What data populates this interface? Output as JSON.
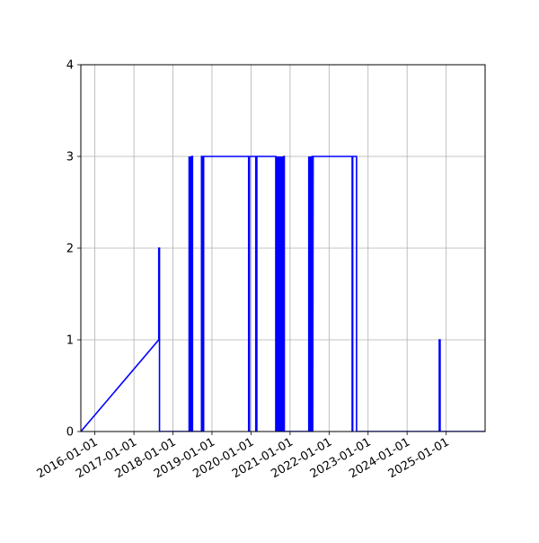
{
  "chart_data": {
    "type": "line",
    "title": "",
    "xlabel": "",
    "ylabel": "",
    "x_tick_labels": [
      "2016-01-01",
      "2017-01-01",
      "2018-01-01",
      "2019-01-01",
      "2020-01-01",
      "2021-01-01",
      "2022-01-01",
      "2023-01-01",
      "2024-01-01",
      "2025-01-01"
    ],
    "y_tick_labels": [
      "0",
      "1",
      "2",
      "3",
      "4"
    ],
    "xlim": [
      "2015-08-23",
      "2025-12-31"
    ],
    "ylim": [
      0,
      4
    ],
    "grid": true,
    "legend": false,
    "series": [
      {
        "color": "#0000ff",
        "points": [
          [
            "2015-08-23",
            0
          ],
          [
            "2017-08-21",
            1
          ],
          [
            "2017-08-21",
            2
          ],
          [
            "2017-08-28",
            2
          ],
          [
            "2017-08-28",
            0
          ],
          [
            "2018-06-01",
            0
          ],
          [
            "2018-06-01",
            3
          ],
          [
            "2018-06-05",
            0
          ],
          [
            "2018-06-10",
            3
          ],
          [
            "2018-06-14",
            0
          ],
          [
            "2018-06-18",
            3
          ],
          [
            "2018-06-22",
            0
          ],
          [
            "2018-06-26",
            3
          ],
          [
            "2018-07-03",
            3
          ],
          [
            "2018-07-03",
            0
          ],
          [
            "2018-09-25",
            0
          ],
          [
            "2018-09-25",
            3
          ],
          [
            "2018-10-05",
            3
          ],
          [
            "2018-10-05",
            0
          ],
          [
            "2018-10-15",
            0
          ],
          [
            "2018-10-15",
            3
          ],
          [
            "2019-12-10",
            3
          ],
          [
            "2019-12-10",
            0
          ],
          [
            "2019-12-18",
            0
          ],
          [
            "2019-12-18",
            3
          ],
          [
            "2020-02-15",
            3
          ],
          [
            "2020-02-15",
            0
          ],
          [
            "2020-02-25",
            0
          ],
          [
            "2020-02-25",
            3
          ],
          [
            "2020-08-20",
            3
          ],
          [
            "2020-08-20",
            0
          ],
          [
            "2020-08-24",
            3
          ],
          [
            "2020-08-28",
            0
          ],
          [
            "2020-09-01",
            3
          ],
          [
            "2020-09-05",
            0
          ],
          [
            "2020-09-09",
            3
          ],
          [
            "2020-09-13",
            0
          ],
          [
            "2020-09-17",
            3
          ],
          [
            "2020-09-21",
            0
          ],
          [
            "2020-09-25",
            3
          ],
          [
            "2020-09-29",
            0
          ],
          [
            "2020-10-03",
            3
          ],
          [
            "2020-10-07",
            0
          ],
          [
            "2020-10-11",
            3
          ],
          [
            "2020-10-15",
            0
          ],
          [
            "2020-10-19",
            3
          ],
          [
            "2020-10-23",
            0
          ],
          [
            "2020-10-27",
            3
          ],
          [
            "2020-10-31",
            0
          ],
          [
            "2020-11-04",
            3
          ],
          [
            "2020-11-08",
            3
          ],
          [
            "2020-11-08",
            0
          ],
          [
            "2021-06-25",
            0
          ],
          [
            "2021-06-25",
            3
          ],
          [
            "2021-06-30",
            0
          ],
          [
            "2021-07-05",
            3
          ],
          [
            "2021-07-10",
            0
          ],
          [
            "2021-07-15",
            3
          ],
          [
            "2021-07-20",
            0
          ],
          [
            "2021-07-25",
            3
          ],
          [
            "2021-08-01",
            3
          ],
          [
            "2021-08-01",
            0
          ],
          [
            "2021-08-05",
            3
          ],
          [
            "2022-08-05",
            3
          ],
          [
            "2022-08-05",
            0
          ],
          [
            "2022-08-10",
            0
          ],
          [
            "2022-08-10",
            3
          ],
          [
            "2022-09-15",
            3
          ],
          [
            "2022-09-15",
            0
          ],
          [
            "2024-10-28",
            0
          ],
          [
            "2024-10-28",
            1
          ],
          [
            "2024-11-05",
            1
          ],
          [
            "2024-11-05",
            0
          ],
          [
            "2025-12-31",
            0
          ]
        ]
      }
    ]
  }
}
